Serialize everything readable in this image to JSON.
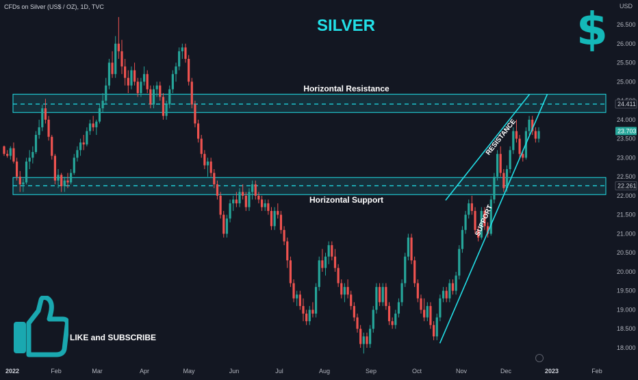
{
  "header": {
    "symbol_label": "CFDs on Silver (US$ / OZ), 1D, TVC",
    "title": "SILVER",
    "currency_glyph": "$",
    "unit": "USD",
    "cta": "LIKE and SUBSCRIBE"
  },
  "colors": {
    "background": "#131722",
    "up": "#26a69a",
    "down": "#ef5350",
    "accent": "#22e0e8",
    "zone_fill": "#1b5e6b"
  },
  "chart_data": {
    "type": "candlestick",
    "ylim": [
      17.8,
      26.9
    ],
    "y_ticks": [
      "26.500",
      "26.000",
      "25.500",
      "25.000",
      "24.500",
      "24.000",
      "23.500",
      "23.000",
      "22.500",
      "22.000",
      "21.500",
      "21.000",
      "20.500",
      "20.000",
      "19.500",
      "19.000",
      "18.500",
      "18.000"
    ],
    "x_ticks": [
      "2022",
      "Feb",
      "Mar",
      "Apr",
      "May",
      "Jun",
      "Jul",
      "Aug",
      "Sep",
      "Oct",
      "Nov",
      "Dec",
      "2023",
      "Feb"
    ],
    "price_labels": [
      {
        "text": "24.411",
        "value": 24.411,
        "color": "#d1d4dc"
      },
      {
        "text": "23.703",
        "value": 23.703,
        "color": "#26a69a"
      },
      {
        "text": "22.261",
        "value": 22.261,
        "color": "#d1d4dc"
      }
    ],
    "zones": [
      {
        "label": "Horizontal Resistance",
        "from": 24.19,
        "to": 24.67,
        "level": 24.411
      },
      {
        "label": "Horizontal Support",
        "from": 22.03,
        "to": 22.48,
        "level": 22.261
      }
    ],
    "trendlines": [
      {
        "label": "RESISTANCE",
        "start": [
          "2022-10-21",
          21.88
        ],
        "end": [
          "2022-12-17",
          24.67
        ]
      },
      {
        "label": "SUPPORT",
        "start": [
          "2022-10-17",
          18.12
        ],
        "end": [
          "2022-12-29",
          24.67
        ]
      }
    ],
    "series": [
      {
        "values": [
          [
            23.3,
            23.32,
            23.05,
            23.1
          ],
          [
            23.1,
            23.2,
            23.0,
            23.05
          ],
          [
            23.05,
            23.3,
            22.95,
            23.25
          ],
          [
            23.25,
            23.4,
            22.85,
            22.9
          ],
          [
            22.9,
            23.0,
            22.4,
            22.5
          ],
          [
            22.5,
            22.65,
            22.1,
            22.3
          ],
          [
            22.3,
            22.45,
            22.1,
            22.35
          ],
          [
            22.35,
            23.0,
            22.3,
            22.9
          ],
          [
            22.9,
            23.2,
            22.7,
            23.0
          ],
          [
            23.0,
            23.3,
            22.85,
            23.15
          ],
          [
            23.15,
            23.7,
            23.1,
            23.6
          ],
          [
            23.6,
            24.0,
            23.5,
            23.8
          ],
          [
            23.8,
            24.4,
            23.7,
            24.3
          ],
          [
            24.3,
            24.55,
            23.9,
            24.0
          ],
          [
            24.0,
            24.1,
            23.45,
            23.55
          ],
          [
            23.55,
            23.6,
            22.95,
            23.05
          ],
          [
            23.05,
            23.1,
            22.3,
            22.4
          ],
          [
            22.4,
            22.7,
            22.2,
            22.55
          ],
          [
            22.55,
            22.6,
            22.1,
            22.25
          ],
          [
            22.25,
            22.5,
            22.1,
            22.4
          ],
          [
            22.4,
            22.6,
            22.2,
            22.35
          ],
          [
            22.35,
            22.7,
            22.3,
            22.6
          ],
          [
            22.6,
            23.1,
            22.55,
            23.0
          ],
          [
            23.0,
            23.3,
            22.9,
            23.2
          ],
          [
            23.2,
            23.5,
            23.05,
            23.4
          ],
          [
            23.4,
            23.6,
            23.2,
            23.35
          ],
          [
            23.35,
            23.8,
            23.3,
            23.7
          ],
          [
            23.7,
            24.0,
            23.6,
            23.9
          ],
          [
            23.9,
            24.1,
            23.7,
            23.8
          ],
          [
            23.8,
            24.0,
            23.6,
            23.95
          ],
          [
            23.95,
            24.4,
            23.9,
            24.3
          ],
          [
            24.3,
            24.7,
            24.2,
            24.5
          ],
          [
            24.5,
            25.1,
            24.4,
            24.9
          ],
          [
            24.9,
            25.6,
            24.8,
            25.5
          ],
          [
            25.5,
            25.8,
            25.1,
            25.2
          ],
          [
            25.2,
            26.2,
            25.1,
            26.0
          ],
          [
            26.0,
            26.7,
            25.6,
            25.8
          ],
          [
            25.8,
            26.1,
            25.2,
            25.4
          ],
          [
            25.4,
            25.6,
            24.9,
            25.1
          ],
          [
            25.1,
            25.3,
            24.7,
            24.9
          ],
          [
            24.9,
            25.4,
            24.8,
            25.3
          ],
          [
            25.3,
            25.5,
            24.9,
            25.0
          ],
          [
            25.0,
            25.1,
            24.6,
            24.7
          ],
          [
            24.7,
            25.1,
            24.6,
            25.0
          ],
          [
            25.0,
            25.4,
            24.9,
            25.2
          ],
          [
            25.2,
            25.3,
            24.7,
            24.8
          ],
          [
            24.8,
            24.9,
            24.3,
            24.4
          ],
          [
            24.4,
            24.9,
            24.3,
            24.8
          ],
          [
            24.8,
            25.0,
            24.6,
            24.9
          ],
          [
            24.9,
            25.0,
            24.5,
            24.6
          ],
          [
            24.6,
            24.7,
            24.0,
            24.1
          ],
          [
            24.1,
            24.5,
            24.0,
            24.4
          ],
          [
            24.4,
            24.9,
            24.3,
            24.8
          ],
          [
            24.8,
            25.3,
            24.7,
            25.2
          ],
          [
            25.2,
            25.5,
            25.0,
            25.4
          ],
          [
            25.4,
            25.9,
            25.3,
            25.8
          ],
          [
            25.8,
            26.0,
            25.6,
            25.9
          ],
          [
            25.9,
            26.0,
            25.5,
            25.6
          ],
          [
            25.6,
            25.7,
            24.9,
            25.0
          ],
          [
            25.0,
            25.1,
            24.3,
            24.4
          ],
          [
            24.4,
            24.5,
            23.8,
            23.9
          ],
          [
            23.9,
            24.0,
            23.4,
            23.5
          ],
          [
            23.5,
            23.6,
            23.0,
            23.1
          ],
          [
            23.1,
            23.2,
            22.7,
            22.8
          ],
          [
            22.8,
            23.0,
            22.5,
            22.9
          ],
          [
            22.9,
            23.0,
            22.5,
            22.6
          ],
          [
            22.6,
            22.7,
            22.2,
            22.3
          ],
          [
            22.3,
            22.4,
            21.9,
            22.0
          ],
          [
            22.0,
            22.1,
            21.4,
            21.5
          ],
          [
            21.5,
            21.6,
            20.9,
            21.0
          ],
          [
            21.0,
            21.5,
            20.9,
            21.4
          ],
          [
            21.4,
            21.9,
            21.3,
            21.8
          ],
          [
            21.8,
            22.0,
            21.6,
            21.9
          ],
          [
            21.9,
            22.1,
            21.7,
            21.8
          ],
          [
            21.8,
            22.2,
            21.7,
            22.1
          ],
          [
            22.1,
            22.3,
            21.9,
            22.0
          ],
          [
            22.0,
            22.1,
            21.6,
            21.7
          ],
          [
            21.7,
            22.2,
            21.6,
            22.1
          ],
          [
            22.1,
            22.4,
            21.9,
            22.3
          ],
          [
            22.3,
            22.4,
            21.9,
            22.0
          ],
          [
            22.0,
            22.1,
            21.8,
            21.9
          ],
          [
            21.9,
            22.0,
            21.6,
            21.7
          ],
          [
            21.7,
            21.9,
            21.6,
            21.8
          ],
          [
            21.8,
            21.9,
            21.5,
            21.6
          ],
          [
            21.6,
            21.7,
            21.1,
            21.2
          ],
          [
            21.2,
            21.7,
            21.1,
            21.6
          ],
          [
            21.6,
            21.8,
            21.4,
            21.5
          ],
          [
            21.5,
            21.6,
            21.0,
            21.1
          ],
          [
            21.1,
            21.2,
            20.7,
            20.8
          ],
          [
            20.8,
            20.9,
            20.1,
            20.3
          ],
          [
            20.3,
            20.4,
            19.6,
            19.7
          ],
          [
            19.7,
            19.8,
            19.2,
            19.3
          ],
          [
            19.3,
            19.5,
            19.1,
            19.4
          ],
          [
            19.4,
            19.5,
            19.0,
            19.1
          ],
          [
            19.1,
            19.3,
            18.7,
            18.9
          ],
          [
            18.9,
            19.0,
            18.6,
            18.7
          ],
          [
            18.7,
            19.1,
            18.6,
            19.0
          ],
          [
            19.0,
            19.2,
            18.8,
            18.9
          ],
          [
            18.9,
            19.7,
            18.8,
            19.6
          ],
          [
            19.6,
            20.4,
            19.5,
            20.3
          ],
          [
            20.3,
            20.6,
            20.0,
            20.1
          ],
          [
            20.1,
            20.5,
            19.9,
            20.4
          ],
          [
            20.4,
            20.8,
            20.2,
            20.7
          ],
          [
            20.7,
            20.8,
            20.3,
            20.4
          ],
          [
            20.4,
            20.6,
            20.0,
            20.1
          ],
          [
            20.1,
            20.2,
            19.6,
            19.7
          ],
          [
            19.7,
            19.8,
            19.3,
            19.4
          ],
          [
            19.4,
            19.7,
            19.2,
            19.6
          ],
          [
            19.6,
            19.8,
            19.3,
            19.4
          ],
          [
            19.4,
            19.5,
            19.0,
            19.1
          ],
          [
            19.1,
            19.2,
            18.7,
            18.8
          ],
          [
            18.8,
            18.9,
            18.4,
            18.5
          ],
          [
            18.5,
            18.6,
            18.0,
            18.1
          ],
          [
            18.1,
            18.4,
            17.85,
            18.3
          ],
          [
            18.3,
            18.4,
            18.0,
            18.1
          ],
          [
            18.1,
            18.6,
            18.0,
            18.5
          ],
          [
            18.5,
            19.1,
            18.4,
            19.0
          ],
          [
            19.0,
            19.7,
            18.9,
            19.6
          ],
          [
            19.6,
            19.7,
            19.1,
            19.2
          ],
          [
            19.2,
            19.7,
            19.1,
            19.6
          ],
          [
            19.6,
            19.7,
            19.0,
            19.1
          ],
          [
            19.1,
            19.2,
            18.6,
            18.7
          ],
          [
            18.7,
            18.8,
            18.5,
            18.6
          ],
          [
            18.6,
            19.0,
            18.5,
            18.9
          ],
          [
            18.9,
            19.3,
            18.8,
            19.2
          ],
          [
            19.2,
            19.8,
            19.1,
            19.7
          ],
          [
            19.7,
            20.5,
            19.6,
            20.4
          ],
          [
            20.4,
            21.0,
            20.3,
            20.9
          ],
          [
            20.9,
            21.0,
            20.2,
            20.3
          ],
          [
            20.3,
            20.4,
            19.6,
            19.7
          ],
          [
            19.7,
            19.8,
            19.2,
            19.3
          ],
          [
            19.3,
            19.4,
            18.9,
            19.0
          ],
          [
            19.0,
            19.3,
            18.7,
            18.8
          ],
          [
            18.8,
            19.2,
            18.7,
            19.1
          ],
          [
            19.1,
            19.2,
            18.5,
            18.6
          ],
          [
            18.6,
            18.7,
            18.2,
            18.3
          ],
          [
            18.3,
            18.9,
            18.2,
            18.8
          ],
          [
            18.8,
            19.4,
            18.7,
            19.3
          ],
          [
            19.3,
            19.6,
            19.2,
            19.5
          ],
          [
            19.5,
            19.6,
            19.2,
            19.3
          ],
          [
            19.3,
            19.8,
            19.2,
            19.7
          ],
          [
            19.7,
            19.8,
            19.4,
            19.5
          ],
          [
            19.5,
            20.0,
            19.4,
            19.9
          ],
          [
            19.9,
            20.7,
            19.8,
            20.6
          ],
          [
            20.6,
            21.2,
            20.5,
            21.1
          ],
          [
            21.1,
            21.6,
            21.0,
            21.5
          ],
          [
            21.5,
            21.9,
            21.4,
            21.8
          ],
          [
            21.8,
            22.0,
            21.5,
            21.6
          ],
          [
            21.6,
            21.7,
            21.0,
            21.1
          ],
          [
            21.1,
            21.2,
            20.8,
            20.9
          ],
          [
            20.9,
            21.7,
            20.85,
            21.6
          ],
          [
            21.6,
            21.7,
            21.1,
            21.2
          ],
          [
            21.2,
            21.3,
            20.9,
            21.0
          ],
          [
            21.0,
            22.0,
            20.95,
            21.9
          ],
          [
            21.9,
            22.6,
            21.8,
            22.5
          ],
          [
            22.5,
            23.2,
            22.4,
            23.1
          ],
          [
            23.1,
            23.3,
            22.5,
            22.6
          ],
          [
            22.6,
            22.7,
            22.1,
            22.2
          ],
          [
            22.2,
            22.8,
            22.1,
            22.7
          ],
          [
            22.7,
            23.3,
            22.6,
            23.2
          ],
          [
            23.2,
            23.8,
            23.1,
            23.7
          ],
          [
            23.7,
            24.0,
            23.4,
            23.5
          ],
          [
            23.5,
            23.6,
            23.0,
            23.1
          ],
          [
            23.1,
            23.2,
            22.9,
            23.0
          ],
          [
            23.0,
            23.8,
            22.95,
            23.7
          ],
          [
            23.7,
            24.1,
            23.6,
            24.0
          ],
          [
            24.0,
            24.1,
            23.6,
            23.7
          ],
          [
            23.7,
            23.8,
            23.4,
            23.5
          ],
          [
            23.5,
            23.8,
            23.4,
            23.7
          ]
        ]
      }
    ]
  }
}
